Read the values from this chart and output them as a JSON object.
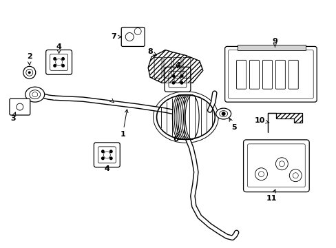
{
  "bg_color": "#ffffff",
  "line_color": "#000000",
  "fig_width": 4.89,
  "fig_height": 3.6,
  "dpi": 100,
  "pipe_lw_outer": 4.5,
  "pipe_lw_inner": 2.8,
  "part_lw": 0.9,
  "label_fontsize": 8.0
}
